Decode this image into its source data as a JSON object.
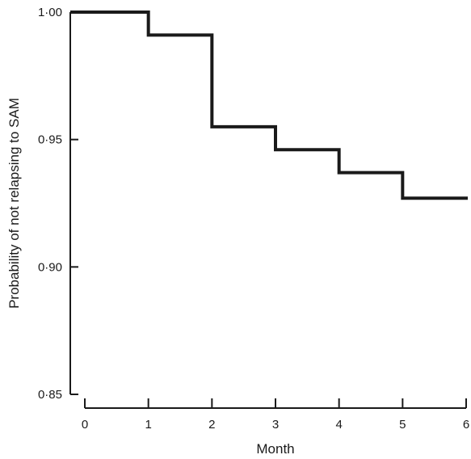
{
  "chart_data": {
    "type": "line",
    "step": true,
    "title": "",
    "xlabel": "Month",
    "ylabel": "Probability of not relapsing to SAM",
    "xlim": [
      0,
      6
    ],
    "ylim": [
      0.85,
      1.0
    ],
    "x_ticks": [
      0,
      1,
      2,
      3,
      4,
      5,
      6
    ],
    "x_tick_labels": [
      "0",
      "1",
      "2",
      "3",
      "4",
      "5",
      "6"
    ],
    "y_ticks": [
      0.85,
      0.9,
      0.95,
      1.0
    ],
    "y_tick_labels": [
      "0·85",
      "0·90",
      "0·95",
      "1·00"
    ],
    "grid": false,
    "series": [
      {
        "color": "#1a1a1a",
        "x": [
          0,
          1,
          2,
          3,
          4,
          5,
          6
        ],
        "y": [
          1.0,
          0.991,
          0.955,
          0.946,
          0.937,
          0.927,
          0.927
        ]
      }
    ]
  }
}
